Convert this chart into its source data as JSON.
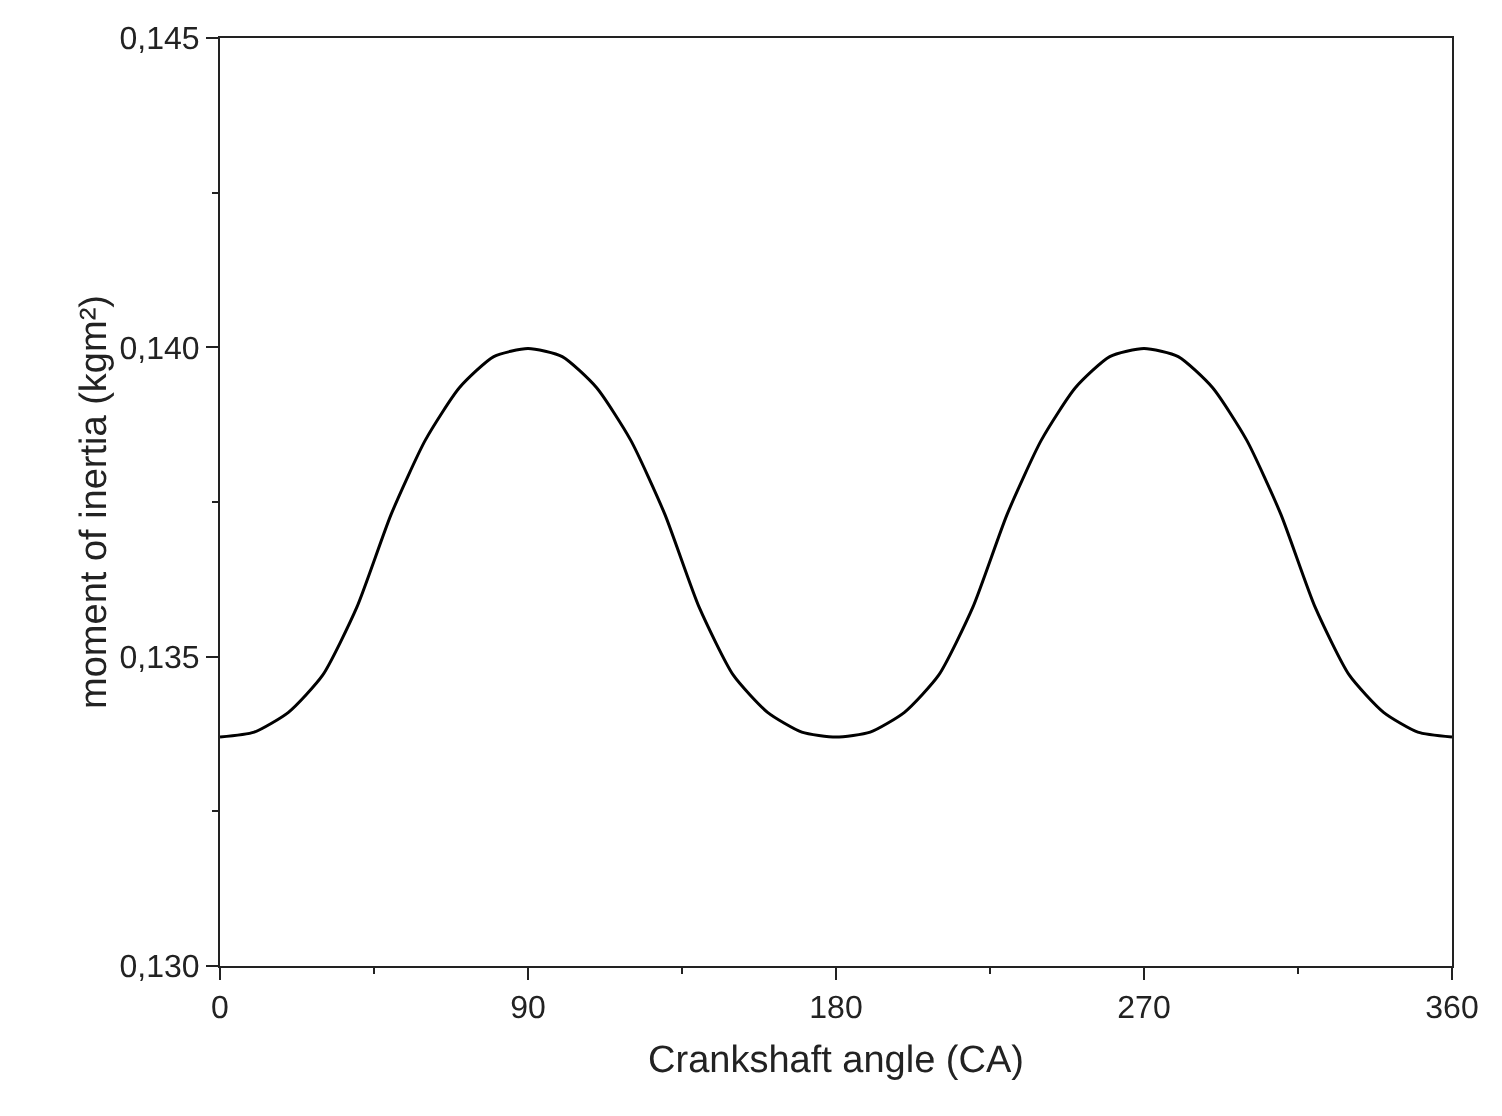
{
  "chart_data": {
    "type": "line",
    "xlabel": "Crankshaft angle (CA)",
    "ylabel": "moment of inertia (kgm²)",
    "x": [
      0,
      10,
      20,
      30,
      40,
      50,
      60,
      70,
      80,
      90,
      100,
      110,
      120,
      130,
      140,
      150,
      160,
      170,
      180,
      190,
      200,
      210,
      220,
      230,
      240,
      250,
      260,
      270,
      280,
      290,
      300,
      310,
      320,
      330,
      340,
      350,
      360
    ],
    "series": [
      {
        "color": "#000000",
        "values": [
          0.1337,
          0.13378,
          0.1341,
          0.1347,
          0.1358,
          0.1373,
          0.1385,
          0.13935,
          0.13985,
          0.13998,
          0.13985,
          0.13935,
          0.1385,
          0.1373,
          0.1358,
          0.1347,
          0.1341,
          0.13378,
          0.1337,
          0.13378,
          0.1341,
          0.1347,
          0.1358,
          0.1373,
          0.1385,
          0.13935,
          0.13985,
          0.13998,
          0.13985,
          0.13935,
          0.1385,
          0.1373,
          0.1358,
          0.1347,
          0.1341,
          0.13378,
          0.1337
        ]
      }
    ],
    "xlim": [
      0,
      360
    ],
    "xticks": [
      0,
      90,
      180,
      270,
      360
    ],
    "ylim": [
      0.13,
      0.145
    ],
    "yticks": [
      {
        "value": 0.13,
        "label": "0,130"
      },
      {
        "value": 0.135,
        "label": "0,135"
      },
      {
        "value": 0.14,
        "label": "0,140"
      },
      {
        "value": 0.145,
        "label": "0,145"
      }
    ],
    "grid": false,
    "marker": "none",
    "line_style": "solid"
  }
}
